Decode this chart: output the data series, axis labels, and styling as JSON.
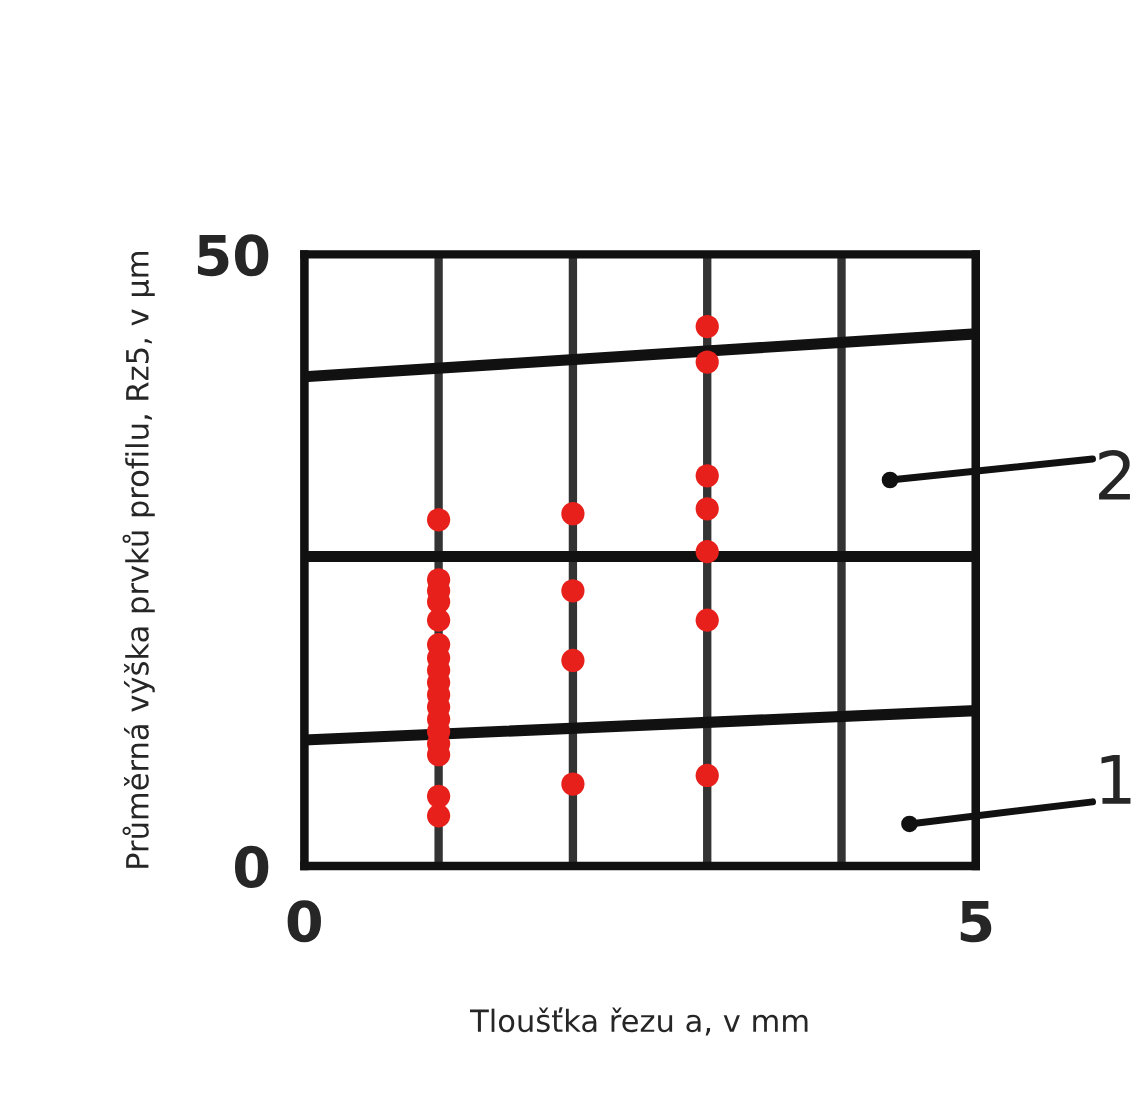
{
  "chart_data": {
    "type": "scatter",
    "xlabel": "Tloušťka řezu a, v mm",
    "ylabel": "Průměrná výška prvků profilu, Rz5, v µm",
    "xlim": [
      0,
      5
    ],
    "ylim": [
      0,
      50
    ],
    "xticks": [
      0,
      {
        "value": 1,
        "label": null
      },
      {
        "value": 2,
        "label": null
      },
      {
        "value": 3,
        "label": null
      },
      {
        "value": 4,
        "label": null
      },
      5
    ],
    "yticks": [
      0,
      50
    ],
    "grid": "x",
    "legend": false,
    "series": [
      {
        "type": "line",
        "color": "#111111",
        "x": [
          0,
          5
        ],
        "values": [
          40.0,
          43.5
        ]
      },
      {
        "type": "line",
        "color": "#111111",
        "x": [
          0,
          5
        ],
        "values": [
          25.3,
          25.3
        ]
      },
      {
        "type": "line",
        "color": "#111111",
        "x": [
          0,
          5
        ],
        "values": [
          10.3,
          12.7
        ]
      },
      {
        "color": "#e8201c",
        "marker": "circle",
        "x": [
          1,
          1,
          1,
          1,
          1,
          1,
          1,
          1,
          1,
          1,
          1,
          1,
          1,
          1,
          1,
          1,
          1,
          2,
          2,
          2,
          2,
          3,
          3,
          3,
          3,
          3,
          3,
          3
        ],
        "values": [
          28.3,
          23.4,
          22.5,
          21.6,
          20.1,
          18.1,
          17,
          16,
          15,
          14,
          13,
          12,
          11,
          10,
          9.1,
          5.7,
          4.1,
          28.8,
          22.5,
          16.8,
          6.7,
          44.1,
          41.2,
          31.9,
          29.2,
          25.7,
          20.1,
          7.4
        ]
      }
    ],
    "annotations": [
      "2",
      "1"
    ]
  }
}
